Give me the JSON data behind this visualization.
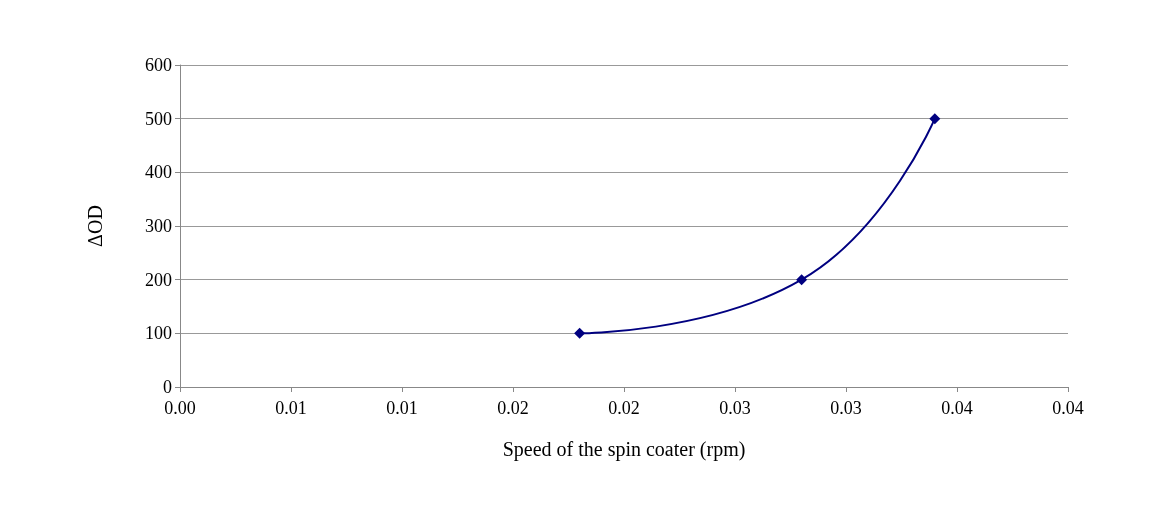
{
  "chart_data": {
    "type": "line",
    "xlabel": "Speed of the spin coater (rpm)",
    "ylabel": "ΔOD",
    "x": [
      0.018,
      0.028,
      0.034
    ],
    "series": [
      {
        "color": "#000080",
        "values": [
          100,
          200,
          500
        ]
      }
    ],
    "xlim": [
      0,
      0.04
    ],
    "xticks": [
      {
        "value": 0,
        "label": "0.00"
      },
      {
        "value": 0.005,
        "label": "0.01"
      },
      {
        "value": 0.01,
        "label": "0.01"
      },
      {
        "value": 0.015,
        "label": "0.02"
      },
      {
        "value": 0.02,
        "label": "0.02"
      },
      {
        "value": 0.025,
        "label": "0.03"
      },
      {
        "value": 0.03,
        "label": "0.03"
      },
      {
        "value": 0.035,
        "label": "0.04"
      },
      {
        "value": 0.04,
        "label": "0.04"
      }
    ],
    "ylim": [
      0,
      600
    ],
    "yticks": [
      0,
      100,
      200,
      300,
      400,
      500,
      600
    ],
    "grid": "y",
    "marker": "diamond",
    "line_style": "solid"
  }
}
